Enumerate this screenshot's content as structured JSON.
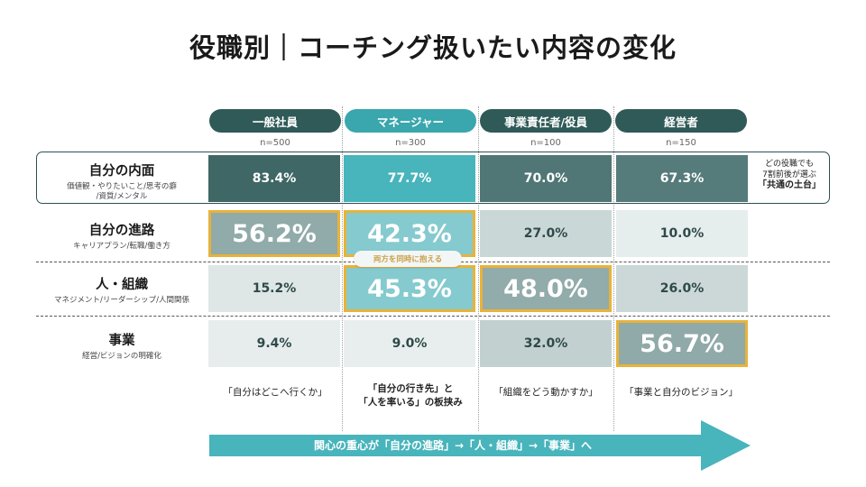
{
  "title": "役職別｜コーチング扱いたい内容の変化",
  "columns": [
    {
      "label": "一般社員",
      "n": "n=500",
      "color": "#2f5a58"
    },
    {
      "label": "マネージャー",
      "n": "n=300",
      "color": "#3aa6ad"
    },
    {
      "label": "事業責任者/役員",
      "n": "n=100",
      "color": "#2f5a58"
    },
    {
      "label": "経営者",
      "n": "n=150",
      "color": "#2f5a58"
    }
  ],
  "rows": [
    {
      "title": "自分の内面",
      "sub": "価値観・やりたいこと/思考の癖\n/資質/メンタル"
    },
    {
      "title": "自分の進路",
      "sub": "キャリアプラン/転職/働き方"
    },
    {
      "title": "人・組織",
      "sub": "マネジメント/リーダーシップ/人間関係"
    },
    {
      "title": "事業",
      "sub": "経営/ビジョンの明確化"
    }
  ],
  "note": {
    "line1": "どの役職でも",
    "line2": "7割前後が選ぶ",
    "line3": "「共通の土台」"
  },
  "pill": "両方を同時に抱える",
  "quotes": [
    {
      "text": "「自分はどこへ行くか」"
    },
    {
      "text": "「自分の行き先」と\n「人を率いる」の板挟み"
    },
    {
      "text": "「組織をどう動かすか」"
    },
    {
      "text": "「事業と自分のビジョン」"
    }
  ],
  "arrow_text": "関心の重心が「自分の進路」→「人・組織」→「事業」へ",
  "chart_data": {
    "type": "heatmap",
    "title": "役職別｜コーチング扱いたい内容の変化",
    "columns": [
      "一般社員",
      "マネージャー",
      "事業責任者/役員",
      "経営者"
    ],
    "rows": [
      "自分の内面",
      "自分の進路",
      "人・組織",
      "事業"
    ],
    "values": [
      [
        83.4,
        77.7,
        70.0,
        67.3
      ],
      [
        56.2,
        42.3,
        27.0,
        10.0
      ],
      [
        15.2,
        45.3,
        48.0,
        26.0
      ],
      [
        9.4,
        9.0,
        32.0,
        56.7
      ]
    ],
    "labels": [
      [
        "83.4%",
        "77.7%",
        "70.0%",
        "67.3%"
      ],
      [
        "56.2%",
        "42.3%",
        "27.0%",
        "10.0%"
      ],
      [
        "15.2%",
        "45.3%",
        "48.0%",
        "26.0%"
      ],
      [
        "9.4%",
        "9.0%",
        "32.0%",
        "56.7%"
      ]
    ],
    "highlighted": [
      [
        1,
        0
      ],
      [
        1,
        1
      ],
      [
        2,
        1
      ],
      [
        2,
        2
      ],
      [
        3,
        3
      ]
    ],
    "colors": {
      "teal_dark": "#3e6765",
      "teal": "#48b4bc",
      "slate": "#5e8282",
      "highlight_border": "#e8b33a"
    }
  }
}
